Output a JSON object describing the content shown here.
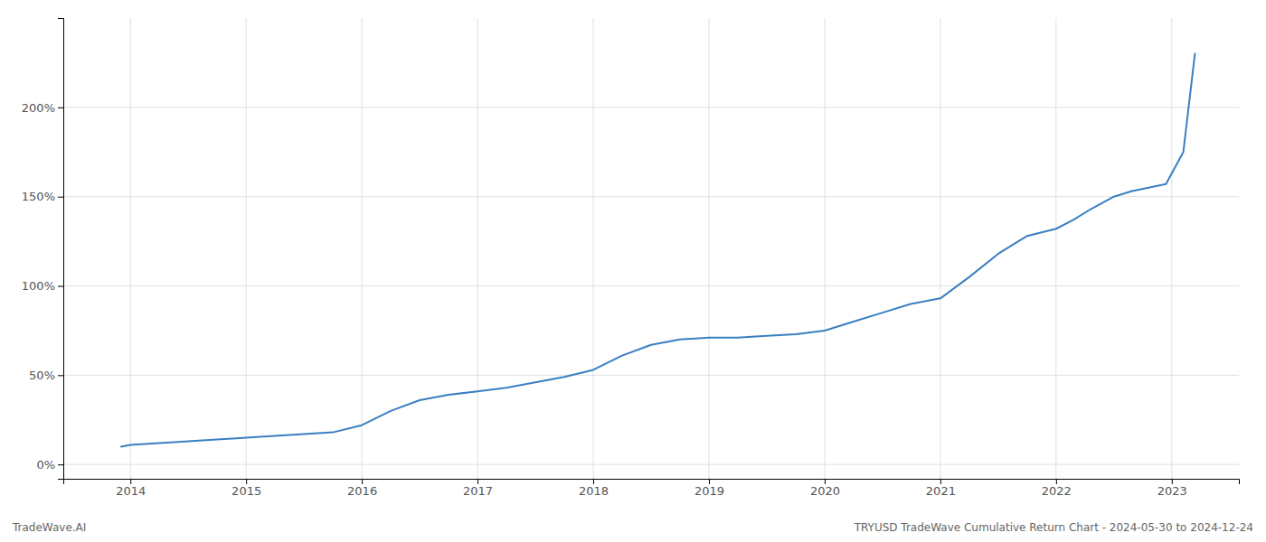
{
  "chart_data": {
    "type": "line",
    "x": [
      2013.92,
      2014.0,
      2014.25,
      2014.5,
      2014.75,
      2015.0,
      2015.25,
      2015.5,
      2015.75,
      2016.0,
      2016.25,
      2016.5,
      2016.75,
      2017.0,
      2017.25,
      2017.5,
      2017.75,
      2018.0,
      2018.25,
      2018.5,
      2018.75,
      2019.0,
      2019.25,
      2019.5,
      2019.75,
      2020.0,
      2020.25,
      2020.5,
      2020.75,
      2021.0,
      2021.25,
      2021.5,
      2021.75,
      2022.0,
      2022.15,
      2022.3,
      2022.5,
      2022.65,
      2022.8,
      2022.95,
      2023.1,
      2023.2
    ],
    "values": [
      10,
      11,
      12,
      13,
      14,
      15,
      16,
      17,
      18,
      22,
      30,
      36,
      39,
      41,
      43,
      46,
      49,
      53,
      61,
      67,
      70,
      71,
      71,
      72,
      73,
      75,
      80,
      85,
      90,
      93,
      105,
      118,
      128,
      132,
      137,
      143,
      150,
      153,
      155,
      157,
      175,
      230
    ],
    "color": "#3a7fc1",
    "xlim": [
      2013.42,
      2023.58
    ],
    "ylim": [
      -8,
      250
    ],
    "xticks": [
      2014,
      2015,
      2016,
      2017,
      2018,
      2019,
      2020,
      2021,
      2022,
      2023
    ],
    "yticks": [
      {
        "value": 0,
        "label": "0%"
      },
      {
        "value": 50,
        "label": "50%"
      },
      {
        "value": 100,
        "label": "100%"
      },
      {
        "value": 150,
        "label": "150%"
      },
      {
        "value": 200,
        "label": "200%"
      }
    ],
    "grid": true,
    "annotations": [
      "TradeWave.AI",
      "TRYUSD TradeWave Cumulative Return Chart - 2024-05-30 to 2024-12-24"
    ]
  }
}
